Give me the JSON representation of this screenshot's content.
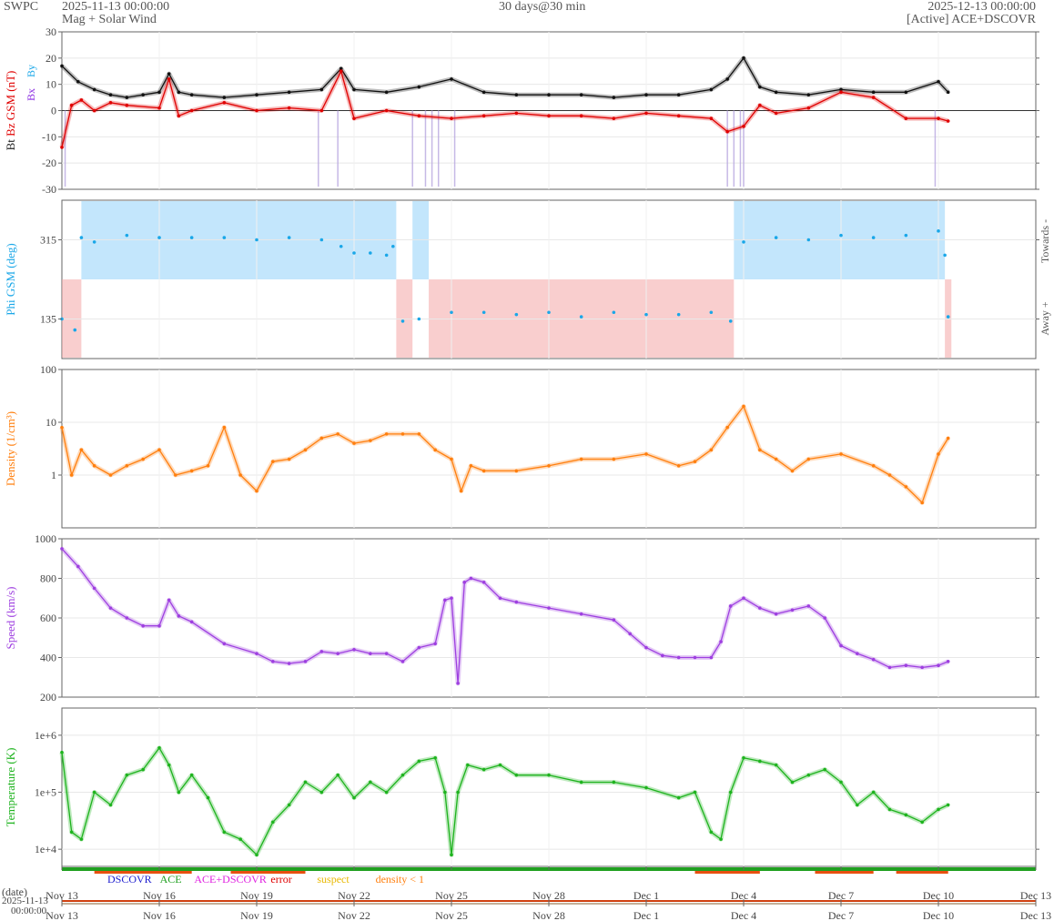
{
  "header": {
    "org": "SWPC",
    "start_date": "2025-11-13 00:00:00",
    "subtitle": "Mag + Solar Wind",
    "span": "30 days@30 min",
    "end_date": "2025-12-13 00:00:00",
    "source": "[Active] ACE+DSCOVR"
  },
  "time_axis": {
    "start": "2025-11-13",
    "end": "2025-12-13",
    "tick_labels": [
      "Nov 13",
      "Nov 16",
      "Nov 19",
      "Nov 22",
      "Nov 25",
      "Nov 28",
      "Dec 1",
      "Dec 4",
      "Dec 7",
      "Dec 10",
      "Dec 13"
    ],
    "tick_days": [
      0,
      3,
      6,
      9,
      12,
      15,
      18,
      21,
      24,
      27,
      30
    ],
    "date_label": "(date)",
    "date_stamp": "2025-11-13",
    "time_stamp": "00:00:00"
  },
  "legend": {
    "items": [
      {
        "text": "DSCOVR",
        "color": "#1d1dcf"
      },
      {
        "text": "ACE",
        "color": "#20a020"
      },
      {
        "text": "ACE+DSCOVR",
        "color": "#e020e0"
      },
      {
        "text": "error",
        "color": "#e00000"
      },
      {
        "text": "suspect",
        "color": "#e8b800"
      },
      {
        "text": "density < 1",
        "color": "#ff7f0e"
      }
    ]
  },
  "chart_data": [
    {
      "type": "line",
      "ylabel": "Bt  Bz GSM (nT)",
      "ylabel_parts": [
        {
          "text": "Bt",
          "color": "#222222"
        },
        {
          "text": "Bz GSM (nT)",
          "color": "#e00000"
        }
      ],
      "side_labels": [
        "Bx",
        "By"
      ],
      "ylim": [
        -30,
        30
      ],
      "yticks": [
        -30,
        -20,
        -10,
        0,
        10,
        20,
        30
      ],
      "series": [
        {
          "name": "Bt",
          "color": "#111111",
          "x": [
            0,
            0.5,
            1,
            1.5,
            2,
            2.5,
            3,
            3.3,
            3.6,
            4,
            5,
            6,
            7,
            8,
            8.6,
            9,
            10,
            11,
            12,
            13,
            14,
            15,
            16,
            17,
            18,
            19,
            20,
            20.5,
            21,
            21.5,
            22,
            23,
            24,
            25,
            26,
            27,
            27.3
          ],
          "y": [
            17,
            11,
            8,
            6,
            5,
            6,
            7,
            14,
            7,
            6,
            5,
            6,
            7,
            8,
            16,
            8,
            7,
            9,
            12,
            7,
            6,
            6,
            6,
            5,
            6,
            6,
            8,
            12,
            20,
            9,
            7,
            6,
            8,
            7,
            7,
            11,
            7
          ]
        },
        {
          "name": "Bz GSM",
          "color": "#e00000",
          "x": [
            0,
            0.3,
            0.6,
            1,
            1.5,
            2,
            3,
            3.3,
            3.6,
            4,
            5,
            6,
            7,
            8,
            8.6,
            9,
            10,
            11,
            12,
            13,
            14,
            15,
            16,
            17,
            18,
            19,
            20,
            20.5,
            21,
            21.5,
            22,
            23,
            24,
            25,
            26,
            27,
            27.3
          ],
          "y": [
            -14,
            2,
            4,
            0,
            3,
            2,
            1,
            12,
            -2,
            0,
            3,
            0,
            1,
            0,
            15,
            -3,
            0,
            -2,
            -3,
            -2,
            -1,
            -2,
            -2,
            -3,
            -1,
            -2,
            -3,
            -8,
            -6,
            2,
            -1,
            1,
            7,
            5,
            -3,
            -3,
            -4
          ]
        }
      ],
      "violet_spikes": [
        0.1,
        7.9,
        8.5,
        10.8,
        11.2,
        11.4,
        11.6,
        12.1,
        20.5,
        20.7,
        20.9,
        21.0,
        26.9
      ]
    },
    {
      "type": "scatter",
      "ylabel": "Phi GSM (deg)",
      "ylim": [
        45,
        405
      ],
      "yticks": [
        135,
        315
      ],
      "right_labels": [
        "Towards -",
        "Away +"
      ],
      "towards_color": "#87cefa",
      "away_color": "#f4a6a6",
      "towards_intervals": [
        [
          0.6,
          10.3
        ],
        [
          10.8,
          11.3
        ],
        [
          20.7,
          27.2
        ]
      ],
      "away_intervals": [
        [
          0,
          0.6
        ],
        [
          10.3,
          10.8
        ],
        [
          11.3,
          20.7
        ],
        [
          27.2,
          27.4
        ]
      ],
      "series": [
        {
          "name": "Phi GSM",
          "color": "#1aa7e8",
          "x": [
            0,
            0.4,
            0.6,
            1,
            2,
            3,
            4,
            5,
            6,
            7,
            8,
            8.6,
            9,
            9.5,
            10,
            10.2,
            10.5,
            11,
            12,
            13,
            14,
            15,
            16,
            17,
            18,
            19,
            20,
            20.6,
            21,
            22,
            23,
            24,
            25,
            26,
            27,
            27.2,
            27.3
          ],
          "y": [
            135,
            110,
            320,
            310,
            325,
            320,
            320,
            320,
            315,
            320,
            315,
            300,
            285,
            285,
            280,
            300,
            130,
            135,
            150,
            150,
            145,
            150,
            140,
            150,
            145,
            145,
            150,
            130,
            310,
            320,
            315,
            325,
            320,
            325,
            335,
            280,
            140
          ]
        }
      ]
    },
    {
      "type": "line",
      "ylabel": "Density (1/cm³)",
      "yscale": "log",
      "ylim": [
        0.1,
        100
      ],
      "yticks": [
        1,
        10,
        100
      ],
      "series": [
        {
          "name": "Density",
          "color": "#ff7f0e",
          "x": [
            0,
            0.3,
            0.6,
            1,
            1.5,
            2,
            2.5,
            3,
            3.5,
            4,
            4.5,
            5,
            5.5,
            6,
            6.5,
            7,
            7.5,
            8,
            8.5,
            9,
            9.5,
            10,
            10.5,
            11,
            11.5,
            12,
            12.3,
            12.6,
            13,
            14,
            15,
            16,
            17,
            18,
            19,
            19.5,
            20,
            20.5,
            21,
            21.5,
            22,
            22.5,
            23,
            24,
            25,
            25.5,
            26,
            26.5,
            27,
            27.3
          ],
          "y": [
            8,
            1,
            3,
            1.5,
            1,
            1.5,
            2,
            3,
            1,
            1.2,
            1.5,
            8,
            1,
            0.5,
            1.8,
            2,
            3,
            5,
            6,
            4,
            4.5,
            6,
            6,
            6,
            3,
            2,
            0.5,
            1.5,
            1.2,
            1.2,
            1.5,
            2,
            2,
            2.5,
            1.5,
            1.8,
            3,
            8,
            20,
            3,
            2,
            1.2,
            2,
            2.5,
            1.5,
            1,
            0.6,
            0.3,
            2.5,
            5
          ]
        }
      ]
    },
    {
      "type": "line",
      "ylabel": "Speed (km/s)",
      "ylim": [
        200,
        1000
      ],
      "yticks": [
        200,
        400,
        600,
        800,
        1000
      ],
      "series": [
        {
          "name": "Speed",
          "color": "#9e3fe0",
          "x": [
            0,
            0.5,
            1,
            1.5,
            2,
            2.5,
            3,
            3.3,
            3.6,
            4,
            5,
            6,
            6.5,
            7,
            7.5,
            8,
            8.5,
            9,
            9.5,
            10,
            10.5,
            11,
            11.5,
            11.8,
            12,
            12.2,
            12.4,
            12.6,
            13,
            13.5,
            14,
            15,
            16,
            17,
            17.5,
            18,
            18.5,
            19,
            19.5,
            20,
            20.3,
            20.6,
            21,
            21.5,
            22,
            22.5,
            23,
            23.5,
            24,
            24.5,
            25,
            25.5,
            26,
            26.5,
            27,
            27.3
          ],
          "y": [
            950,
            860,
            750,
            650,
            600,
            560,
            560,
            690,
            610,
            580,
            470,
            420,
            380,
            370,
            380,
            430,
            420,
            440,
            420,
            420,
            380,
            450,
            470,
            690,
            700,
            270,
            780,
            800,
            780,
            700,
            680,
            650,
            620,
            590,
            520,
            450,
            410,
            400,
            400,
            400,
            480,
            660,
            700,
            650,
            620,
            640,
            660,
            600,
            460,
            420,
            390,
            350,
            360,
            350,
            360,
            380
          ]
        }
      ]
    },
    {
      "type": "line",
      "ylabel": "Temperature (K)",
      "yscale": "log",
      "ylim": [
        5000,
        3000000
      ],
      "yticks": [
        10000,
        100000,
        1000000
      ],
      "tick_labels": [
        "1e+4",
        "1e+5",
        "1e+6"
      ],
      "series": [
        {
          "name": "Temperature",
          "color": "#1eb31e",
          "x": [
            0,
            0.3,
            0.6,
            1,
            1.5,
            2,
            2.5,
            3,
            3.3,
            3.6,
            4,
            4.5,
            5,
            5.5,
            6,
            6.5,
            7,
            7.5,
            8,
            8.5,
            9,
            9.5,
            10,
            10.5,
            11,
            11.5,
            11.8,
            12,
            12.2,
            12.5,
            13,
            13.5,
            14,
            15,
            16,
            17,
            18,
            19,
            19.5,
            20,
            20.3,
            20.6,
            21,
            21.5,
            22,
            22.5,
            23,
            23.5,
            24,
            24.5,
            25,
            25.5,
            26,
            26.5,
            27,
            27.3
          ],
          "y": [
            500000,
            20000,
            15000,
            100000,
            60000,
            200000,
            250000,
            600000,
            300000,
            100000,
            200000,
            80000,
            20000,
            15000,
            8000,
            30000,
            60000,
            150000,
            100000,
            200000,
            80000,
            150000,
            100000,
            200000,
            350000,
            400000,
            100000,
            8000,
            100000,
            300000,
            250000,
            300000,
            200000,
            200000,
            150000,
            150000,
            120000,
            80000,
            100000,
            20000,
            15000,
            100000,
            400000,
            350000,
            300000,
            150000,
            200000,
            250000,
            150000,
            60000,
            100000,
            50000,
            40000,
            30000,
            50000,
            60000
          ]
        }
      ]
    }
  ]
}
